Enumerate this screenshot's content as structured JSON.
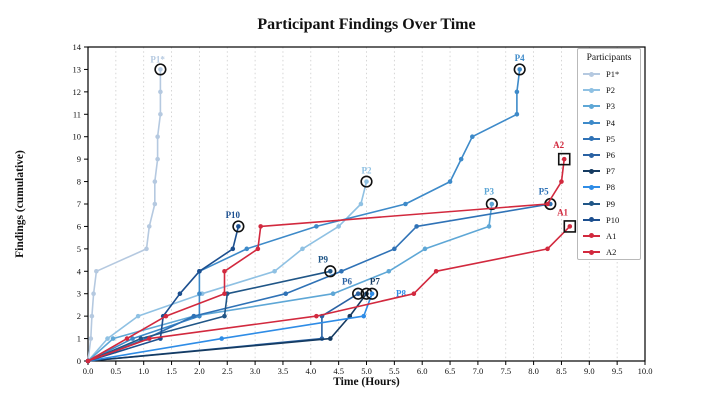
{
  "title": "Participant Findings Over Time",
  "x_axis": {
    "label": "Time (Hours)",
    "ticks": [
      "0.0",
      "0.5",
      "1.0",
      "1.5",
      "2.0",
      "2.5",
      "3.0",
      "3.5",
      "4.0",
      "4.5",
      "5.0",
      "5.5",
      "6.0",
      "6.5",
      "7.0",
      "7.5",
      "8.0",
      "8.5",
      "9.0",
      "9.5",
      "10.0"
    ]
  },
  "y_axis": {
    "label": "Findings (cumulative)",
    "ticks": [
      "0",
      "1",
      "2",
      "3",
      "4",
      "5",
      "6",
      "7",
      "8",
      "9",
      "10",
      "11",
      "12",
      "13",
      "14"
    ]
  },
  "legend": {
    "title": "Participants"
  },
  "colors": {
    "annotation_outline": "#111111",
    "grid": "#cccccc",
    "axis": "#000000"
  },
  "chart_data": {
    "type": "line",
    "title": "Participant Findings Over Time",
    "xlabel": "Time (Hours)",
    "ylabel": "Findings (cumulative)",
    "xlim": [
      0,
      10
    ],
    "ylim": [
      0,
      14
    ],
    "grid": "vertical-dotted",
    "legend_position": "upper-right",
    "series": [
      {
        "name": "P1*",
        "color": "#b5c9e0",
        "end_marker": "circle",
        "label_pos": [
          1.25,
          13.45
        ],
        "points": [
          [
            0,
            0
          ],
          [
            0.05,
            1
          ],
          [
            0.07,
            2
          ],
          [
            0.1,
            3
          ],
          [
            0.15,
            4
          ],
          [
            1.05,
            5
          ],
          [
            1.1,
            6
          ],
          [
            1.2,
            7
          ],
          [
            1.2,
            8
          ],
          [
            1.25,
            9
          ],
          [
            1.25,
            10
          ],
          [
            1.3,
            11
          ],
          [
            1.3,
            12
          ],
          [
            1.3,
            13
          ]
        ]
      },
      {
        "name": "P2",
        "color": "#8fc1e3",
        "end_marker": "circle",
        "label_pos": [
          5.0,
          8.5
        ],
        "points": [
          [
            0,
            0
          ],
          [
            0.35,
            1
          ],
          [
            0.9,
            2
          ],
          [
            2.05,
            3
          ],
          [
            3.35,
            4
          ],
          [
            3.85,
            5
          ],
          [
            4.5,
            6
          ],
          [
            4.9,
            7
          ],
          [
            5.0,
            8
          ]
        ]
      },
      {
        "name": "P3",
        "color": "#5ea7d6",
        "end_marker": "circle",
        "label_pos": [
          7.2,
          7.55
        ],
        "points": [
          [
            0,
            0
          ],
          [
            0.45,
            1
          ],
          [
            1.9,
            2
          ],
          [
            4.4,
            3
          ],
          [
            5.4,
            4
          ],
          [
            6.05,
            5
          ],
          [
            7.2,
            6
          ],
          [
            7.25,
            7
          ]
        ]
      },
      {
        "name": "P4",
        "color": "#3d8ac9",
        "end_marker": "circle",
        "label_pos": [
          7.75,
          13.5
        ],
        "points": [
          [
            0,
            0
          ],
          [
            0.8,
            1
          ],
          [
            2.0,
            2
          ],
          [
            2.0,
            3
          ],
          [
            2.0,
            4
          ],
          [
            2.85,
            5
          ],
          [
            4.1,
            6
          ],
          [
            5.7,
            7
          ],
          [
            6.5,
            8
          ],
          [
            6.7,
            9
          ],
          [
            6.9,
            10
          ],
          [
            7.7,
            11
          ],
          [
            7.7,
            12
          ],
          [
            7.75,
            13
          ]
        ]
      },
      {
        "name": "P5",
        "color": "#2f72b6",
        "end_marker": "circle",
        "label_pos": [
          8.18,
          7.55
        ],
        "points": [
          [
            0,
            0
          ],
          [
            1.05,
            1
          ],
          [
            1.9,
            2
          ],
          [
            3.55,
            3
          ],
          [
            4.55,
            4
          ],
          [
            5.5,
            5
          ],
          [
            5.9,
            6
          ],
          [
            8.3,
            7
          ]
        ]
      },
      {
        "name": "P6",
        "color": "#2a62a3",
        "end_marker": "circle",
        "label_pos": [
          4.65,
          3.55
        ],
        "points": [
          [
            0,
            0
          ],
          [
            4.2,
            1
          ],
          [
            4.2,
            2
          ],
          [
            4.85,
            3
          ]
        ]
      },
      {
        "name": "P7",
        "color": "#143a61",
        "end_marker": "circle",
        "label_pos": [
          5.15,
          3.55
        ],
        "points": [
          [
            0,
            0
          ],
          [
            4.35,
            1
          ],
          [
            4.7,
            2
          ],
          [
            5.0,
            3
          ]
        ]
      },
      {
        "name": "P8",
        "color": "#2e8ce6",
        "end_marker": "circle",
        "label_pos": [
          5.62,
          3.0
        ],
        "points": [
          [
            0,
            0
          ],
          [
            2.4,
            1
          ],
          [
            4.95,
            2
          ],
          [
            5.1,
            3
          ]
        ]
      },
      {
        "name": "P9",
        "color": "#205687",
        "end_marker": "circle",
        "label_pos": [
          4.22,
          4.52
        ],
        "points": [
          [
            0,
            0
          ],
          [
            0.95,
            1
          ],
          [
            2.45,
            2
          ],
          [
            2.5,
            3
          ],
          [
            4.35,
            4
          ]
        ]
      },
      {
        "name": "P10",
        "color": "#1c4f8f",
        "end_marker": "circle",
        "label_pos": [
          2.6,
          6.52
        ],
        "points": [
          [
            0,
            0
          ],
          [
            1.3,
            1
          ],
          [
            1.35,
            2
          ],
          [
            1.65,
            3
          ],
          [
            2.0,
            4
          ],
          [
            2.6,
            5
          ],
          [
            2.7,
            6
          ]
        ]
      },
      {
        "name": "A1",
        "color": "#d2293e",
        "end_marker": "square",
        "label_pos": [
          8.52,
          6.62
        ],
        "points": [
          [
            0,
            0
          ],
          [
            1.1,
            1
          ],
          [
            4.1,
            2
          ],
          [
            5.85,
            3
          ],
          [
            6.25,
            4
          ],
          [
            8.25,
            5
          ],
          [
            8.65,
            6
          ]
        ]
      },
      {
        "name": "A2",
        "color": "#d2293e",
        "end_marker": "square",
        "label_pos": [
          8.45,
          9.62
        ],
        "points": [
          [
            0,
            0
          ],
          [
            0.7,
            1
          ],
          [
            1.4,
            2
          ],
          [
            2.45,
            3
          ],
          [
            2.45,
            4
          ],
          [
            3.05,
            5
          ],
          [
            3.1,
            6
          ],
          [
            8.25,
            7
          ],
          [
            8.5,
            8
          ],
          [
            8.55,
            9
          ]
        ]
      }
    ]
  }
}
